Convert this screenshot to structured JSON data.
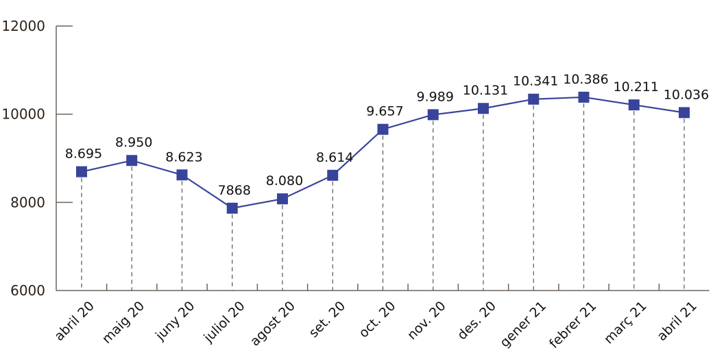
{
  "chart_data": {
    "type": "line",
    "title": "",
    "xlabel": "",
    "ylabel": "",
    "ylim": [
      6000,
      12000
    ],
    "yticks": [
      6000,
      8000,
      10000,
      12000
    ],
    "ytick_labels": [
      "6000",
      "8000",
      "10000",
      "12000"
    ],
    "grid": false,
    "categories": [
      "abril 20",
      "maig 20",
      "juny 20",
      "juliol 20",
      "agost 20",
      "set. 20",
      "oct. 20",
      "nov. 20",
      "des. 20",
      "gener 21",
      "febrer 21",
      "març 21",
      "abril 21"
    ],
    "series": [
      {
        "name": "",
        "color": "#38449a",
        "values": [
          8695,
          8950,
          8623,
          7868,
          8080,
          8614,
          9657,
          9989,
          10131,
          10341,
          10386,
          10211,
          10036
        ],
        "labels": [
          "8.695",
          "8.950",
          "8.623",
          "7868",
          "8.080",
          "8.614",
          "9.657",
          "9.989",
          "10.131",
          "10.341",
          "10.386",
          "10.211",
          "10.036"
        ]
      }
    ],
    "axis_color": "#6b625a"
  }
}
